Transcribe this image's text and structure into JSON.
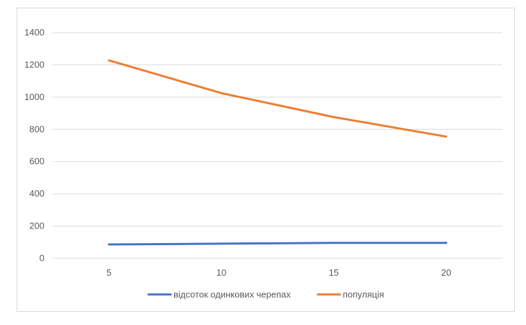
{
  "chart_data": {
    "type": "line",
    "title": "",
    "xlabel": "",
    "ylabel": "",
    "categories": [
      "5",
      "10",
      "15",
      "20"
    ],
    "ylim": [
      0,
      1400
    ],
    "yticks": [
      0,
      200,
      400,
      600,
      800,
      1000,
      1200,
      1400
    ],
    "grid": true,
    "legend": "bottom",
    "series": [
      {
        "name": "відсоток одинкових черепах",
        "color": "#4472c4",
        "values": [
          86,
          91,
          96,
          96
        ]
      },
      {
        "name": "популяція",
        "color": "#ed7d31",
        "values": [
          1228,
          1025,
          876,
          755
        ]
      }
    ]
  }
}
